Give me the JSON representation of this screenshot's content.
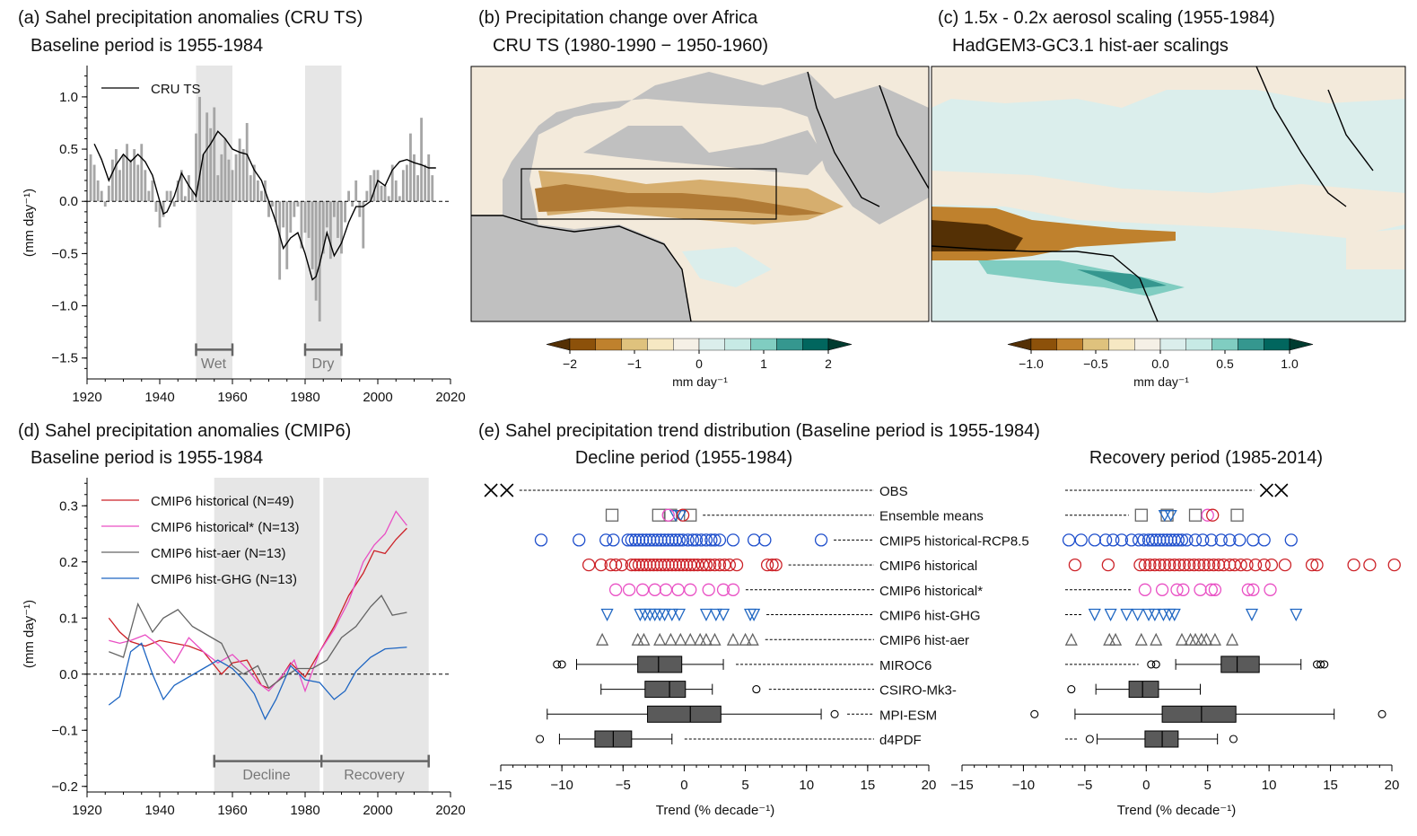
{
  "panels": {
    "a": {
      "title": "(a) Sahel precipitation anomalies (CRU TS)",
      "subtitle": "Baseline period is 1955-1984",
      "ylabel": "(mm day⁻¹)",
      "legend": "CRU TS",
      "wet_label": "Wet",
      "dry_label": "Dry"
    },
    "b": {
      "title": "(b) Precipitation change over Africa",
      "subtitle": "CRU TS (1980-1990 − 1950-1960)",
      "colorbar_ticks": [
        "−2",
        "−1",
        "0",
        "1",
        "2"
      ],
      "colorbar_label": "mm day⁻¹"
    },
    "c": {
      "title": "(c) 1.5x - 0.2x aerosol scaling (1955-1984)",
      "subtitle": "HadGEM3-GC3.1 hist-aer scalings",
      "colorbar_ticks": [
        "−1.0",
        "−0.5",
        "0.0",
        "0.5",
        "1.0"
      ],
      "colorbar_label": "mm day⁻¹"
    },
    "d": {
      "title": "(d) Sahel precipitation anomalies (CMIP6)",
      "subtitle": "Baseline period is 1955-1984",
      "ylabel": "(mm day⁻¹)",
      "decline_label": "Decline",
      "recovery_label": "Recovery"
    },
    "e": {
      "title": "(e) Sahel precipitation trend distribution (Baseline period is 1955-1984)",
      "decline_title": "Decline period (1955-1984)",
      "recovery_title": "Recovery period (1985-2014)",
      "xlabel": "Trend (% decade⁻¹)"
    }
  },
  "colors": {
    "cru": "#000000",
    "bars": "#a6a6a6",
    "shade": "#e6e6e6",
    "hist": "#cc2127",
    "hist_star": "#e94fc4",
    "hist_aer": "#646464",
    "hist_ghg": "#1f66c2",
    "cmip5": "#1f4fcc",
    "ens": "#666666",
    "box": "#5a5a5a"
  },
  "chart_data": [
    {
      "id": "a",
      "type": "bar",
      "xlabel": "",
      "ylabel": "(mm day⁻¹)",
      "xlim": [
        1920,
        2020
      ],
      "ylim": [
        -1.7,
        1.3
      ],
      "xticks": [
        1920,
        1940,
        1960,
        1980,
        2000,
        2020
      ],
      "yticks": [
        -1.5,
        -1.0,
        -0.5,
        0.0,
        0.5,
        1.0
      ],
      "ytick_labels": [
        "−1.5",
        "−1.0",
        "−0.5",
        "0.0",
        "0.5",
        "1.0"
      ],
      "shaded_periods": [
        [
          1950,
          1960
        ],
        [
          1980,
          1990
        ]
      ],
      "years_start": 1921,
      "annual_anomaly": [
        0.45,
        0.35,
        0.2,
        0.1,
        -0.05,
        0.15,
        0.4,
        0.5,
        0.3,
        0.45,
        0.55,
        0.4,
        0.5,
        0.35,
        0.55,
        0.3,
        0.1,
        0.2,
        -0.1,
        -0.25,
        -0.15,
        0.1,
        0.1,
        -0.05,
        0.2,
        0.3,
        0.05,
        0.25,
        0.1,
        0.65,
        1.0,
        0.45,
        0.85,
        0.7,
        0.9,
        0.25,
        0.45,
        0.6,
        0.4,
        0.3,
        0.45,
        0.6,
        0.5,
        0.75,
        0.25,
        0.35,
        0.2,
        0.1,
        0.2,
        -0.15,
        -0.05,
        -0.2,
        -0.75,
        -0.25,
        -0.65,
        -0.3,
        -0.15,
        -0.05,
        -0.45,
        -0.3,
        -0.35,
        -0.65,
        -0.95,
        -1.15,
        -0.5,
        -0.25,
        -0.55,
        -0.15,
        -0.35,
        -0.5,
        -0.2,
        0.1,
        -0.05,
        0.2,
        -0.15,
        -0.45,
        0.1,
        0.25,
        0.3,
        0.3,
        0.15,
        0.15,
        0.05,
        0.35,
        0.2,
        0.05,
        0.3,
        0.35,
        0.65,
        0.45,
        0.25,
        0.8,
        0.35,
        0.45,
        0.25
      ],
      "smoothed": {
        "x": [
          1922,
          1924,
          1926,
          1928,
          1930,
          1932,
          1934,
          1936,
          1938,
          1940,
          1941,
          1942,
          1944,
          1946,
          1948,
          1950,
          1952,
          1954,
          1956,
          1958,
          1960,
          1962,
          1964,
          1966,
          1968,
          1970,
          1972,
          1974,
          1976,
          1978,
          1980,
          1982,
          1983,
          1984,
          1986,
          1988,
          1990,
          1992,
          1994,
          1996,
          1998,
          2000,
          2002,
          2004,
          2006,
          2008,
          2010,
          2012,
          2014,
          2016
        ],
        "y": [
          0.55,
          0.4,
          0.2,
          0.35,
          0.45,
          0.38,
          0.45,
          0.38,
          0.25,
          0.0,
          -0.12,
          -0.1,
          0.05,
          0.27,
          0.15,
          0.05,
          0.45,
          0.55,
          0.67,
          0.6,
          0.5,
          0.47,
          0.45,
          0.3,
          0.2,
          0.0,
          -0.2,
          -0.45,
          -0.35,
          -0.3,
          -0.5,
          -0.75,
          -0.72,
          -0.6,
          -0.3,
          -0.52,
          -0.4,
          -0.2,
          -0.05,
          -0.05,
          0.0,
          0.2,
          0.15,
          0.3,
          0.38,
          0.4,
          0.37,
          0.35,
          0.32,
          0.32
        ]
      }
    },
    {
      "id": "b",
      "type": "heatmap",
      "colorbar": {
        "ticks": [
          -2,
          -1,
          0,
          1,
          2
        ],
        "levels": [
          -2.5,
          -2.0,
          -1.5,
          -1.0,
          -0.5,
          -0.25,
          0.25,
          0.5,
          1.0,
          1.5,
          2.0,
          2.5
        ],
        "colors": [
          "#543005",
          "#8c510a",
          "#bf812d",
          "#dfc27d",
          "#f6e8c3",
          "#f5f0e6",
          "#dbeeec",
          "#c7eae5",
          "#80cdc1",
          "#35978f",
          "#01665e",
          "#003c30"
        ]
      }
    },
    {
      "id": "c",
      "type": "heatmap",
      "colorbar": {
        "ticks": [
          -1.0,
          -0.5,
          0.0,
          0.5,
          1.0
        ],
        "levels": [
          -1.25,
          -1.0,
          -0.75,
          -0.5,
          -0.25,
          -0.125,
          0.125,
          0.25,
          0.5,
          0.75,
          1.0,
          1.25
        ]
      }
    },
    {
      "id": "d",
      "type": "line",
      "ylabel": "(mm day⁻¹)",
      "xlim": [
        1920,
        2020
      ],
      "ylim": [
        -0.21,
        0.35
      ],
      "xticks": [
        1920,
        1940,
        1960,
        1980,
        2000,
        2020
      ],
      "yticks": [
        -0.2,
        -0.1,
        0.0,
        0.1,
        0.2,
        0.3
      ],
      "ytick_labels": [
        "−0.2",
        "−0.1",
        "0.0",
        "0.1",
        "0.2",
        "0.3"
      ],
      "shaded_periods": [
        [
          1955,
          1984
        ],
        [
          1985,
          2014
        ]
      ],
      "series": [
        {
          "name": "CMIP6 historical (N=49)",
          "color": "#cc2127",
          "x": [
            1926,
            1929,
            1932,
            1936,
            1940,
            1944,
            1948,
            1952,
            1957,
            1960,
            1964,
            1968,
            1970,
            1973,
            1976,
            1980,
            1984,
            1988,
            1992,
            1996,
            1999,
            2002,
            2005,
            2008
          ],
          "y": [
            0.1,
            0.075,
            0.058,
            0.05,
            0.06,
            0.055,
            0.05,
            0.04,
            0.0,
            0.02,
            0.025,
            -0.02,
            -0.025,
            -0.01,
            0.02,
            -0.005,
            0.04,
            0.085,
            0.14,
            0.18,
            0.22,
            0.215,
            0.24,
            0.26
          ]
        },
        {
          "name": "CMIP6 historical* (N=13)",
          "color": "#e94fc4",
          "x": [
            1926,
            1929,
            1932,
            1936,
            1940,
            1944,
            1948,
            1952,
            1956,
            1960,
            1964,
            1967,
            1970,
            1974,
            1977,
            1980,
            1984,
            1988,
            1992,
            1996,
            1999,
            2002,
            2005,
            2008
          ],
          "y": [
            0.06,
            0.055,
            0.06,
            0.07,
            0.05,
            0.02,
            0.065,
            0.04,
            0.02,
            0.035,
            0.01,
            -0.015,
            -0.03,
            0.0,
            0.025,
            -0.03,
            0.04,
            0.08,
            0.13,
            0.2,
            0.23,
            0.25,
            0.29,
            0.265
          ]
        },
        {
          "name": "CMIP6 hist-aer (N=13)",
          "color": "#646464",
          "x": [
            1926,
            1930,
            1934,
            1938,
            1941,
            1945,
            1949,
            1953,
            1957,
            1960,
            1963,
            1967,
            1970,
            1974,
            1978,
            1982,
            1986,
            1990,
            1994,
            1998,
            2001,
            2004,
            2008
          ],
          "y": [
            0.04,
            0.03,
            0.125,
            0.075,
            0.1,
            0.115,
            0.085,
            0.07,
            0.055,
            0.015,
            0.0,
            0.015,
            -0.025,
            -0.005,
            0.01,
            0.01,
            0.025,
            0.065,
            0.085,
            0.12,
            0.14,
            0.105,
            0.11
          ]
        },
        {
          "name": "CMIP6 hist-GHG (N=13)",
          "color": "#1f66c2",
          "x": [
            1926,
            1929,
            1932,
            1935,
            1938,
            1941,
            1944,
            1948,
            1952,
            1956,
            1960,
            1963,
            1966,
            1969,
            1972,
            1976,
            1980,
            1984,
            1988,
            1991,
            1994,
            1998,
            2002,
            2008
          ],
          "y": [
            -0.055,
            -0.04,
            0.04,
            0.055,
            0.0,
            -0.045,
            -0.02,
            -0.005,
            0.01,
            0.025,
            0.01,
            -0.01,
            -0.035,
            -0.08,
            -0.045,
            0.015,
            -0.01,
            -0.015,
            -0.045,
            -0.03,
            0.005,
            0.03,
            0.045,
            0.048
          ]
        }
      ]
    },
    {
      "id": "e",
      "type": "scatter",
      "xlim": [
        -15,
        20
      ],
      "xticks": [
        -15,
        -10,
        -5,
        0,
        5,
        10,
        15,
        20
      ],
      "xtick_labels": [
        "−15",
        "−10",
        "−5",
        "0",
        "5",
        "10",
        "15",
        "20"
      ],
      "xlabel": "Trend (% decade⁻¹)",
      "rows": [
        "OBS",
        "Ensemble means",
        "CMIP5 historical-RCP8.5",
        "CMIP6 historical",
        "CMIP6 historical*",
        "CMIP6 hist-GHG",
        "CMIP6 hist-aer",
        "MIROC6",
        "CSIRO-Mk3-",
        "MPI-ESM",
        "d4PDF"
      ],
      "decline": {
        "OBS": {
          "marker": "x",
          "values": [
            -15.8,
            -14.5
          ]
        },
        "Ensemble means": {
          "squares": [
            -5.9,
            -2.1,
            -1.1,
            0.5
          ],
          "circles": [
            -1.3,
            -0.1
          ],
          "circle_colors": [
            "#e94fc4",
            "#cc2127"
          ],
          "triangles": [
            -0.7,
            -0.3
          ]
        },
        "CMIP5 historical-RCP8.5": [
          -11.7,
          -8.6,
          -6.4,
          -5.8,
          -4.6,
          -4.3,
          -4.0,
          -3.7,
          -3.4,
          -3.1,
          -2.8,
          -2.5,
          -2.2,
          -1.9,
          -1.6,
          -1.3,
          -1.0,
          -0.7,
          -0.4,
          -0.1,
          0.3,
          0.7,
          1.0,
          1.4,
          1.8,
          2.2,
          2.5,
          2.9,
          4.0,
          5.7,
          6.6,
          11.2
        ],
        "CMIP6 historical": [
          -7.8,
          -6.8,
          -6.0,
          -5.6,
          -5.1,
          -4.3,
          -4.0,
          -3.7,
          -3.4,
          -3.1,
          -2.8,
          -2.5,
          -2.2,
          -1.9,
          -1.6,
          -1.3,
          -1.0,
          -0.7,
          -0.4,
          -0.1,
          0.2,
          0.5,
          0.8,
          1.1,
          1.5,
          1.8,
          2.1,
          2.5,
          2.9,
          3.3,
          3.7,
          4.3,
          6.8,
          7.2,
          7.5
        ],
        "CMIP6 historical*": [
          -5.6,
          -4.5,
          -3.4,
          -2.4,
          -1.5,
          -0.5,
          0.5,
          2.0,
          3.2,
          4.0
        ],
        "CMIP6 hist-GHG": [
          -6.3,
          -3.6,
          -3.2,
          -2.8,
          -2.4,
          -2.0,
          -1.6,
          -1.0,
          -0.4,
          1.8,
          2.6,
          3.2,
          5.4,
          5.7
        ],
        "CMIP6 hist-aer": [
          -6.7,
          -3.8,
          -3.3,
          -2.0,
          -0.3,
          0.5,
          1.3,
          1.8,
          2.5,
          4.0,
          5.0,
          5.6,
          -1.1
        ],
        "boxes": {
          "MIROC6": {
            "whisker": [
              -8.8,
              3.2
            ],
            "box": [
              -3.8,
              -0.2
            ],
            "median": -2.1,
            "outliers": [
              -10.4,
              -10.0
            ]
          },
          "CSIRO-Mk3-": {
            "whisker": [
              -6.8,
              2.3
            ],
            "box": [
              -3.2,
              0.1
            ],
            "median": -1.2,
            "outliers": [
              5.9
            ]
          },
          "MPI-ESM": {
            "whisker": [
              -11.2,
              11.2
            ],
            "box": [
              -3.0,
              3.0
            ],
            "median": 0.5,
            "outliers": [
              12.3
            ]
          },
          "d4PDF": {
            "whisker": [
              -10.2,
              -1.0
            ],
            "box": [
              -7.3,
              -4.3
            ],
            "median": -5.8,
            "outliers": [
              -11.8
            ]
          }
        }
      },
      "recovery": {
        "OBS": {
          "marker": "x",
          "values": [
            9.8,
            11.0
          ]
        },
        "Ensemble means": {
          "squares": [
            -0.4,
            1.7,
            4.0,
            7.4
          ],
          "circles": [
            5.0,
            5.4
          ],
          "circle_colors": [
            "#e94fc4",
            "#cc2127"
          ],
          "triangles": [
            1.5,
            2.0
          ]
        },
        "CMIP5 historical-RCP8.5": [
          -6.3,
          -5.3,
          -4.2,
          -3.3,
          -2.7,
          -2.0,
          -1.2,
          -0.6,
          -0.2,
          0.2,
          0.5,
          0.8,
          1.1,
          1.4,
          1.7,
          2.0,
          2.3,
          2.6,
          2.9,
          3.3,
          4.0,
          4.6,
          5.3,
          6.1,
          6.8,
          7.6,
          8.7,
          9.6,
          11.8
        ],
        "CMIP6 historical": [
          -5.8,
          -3.1,
          -0.5,
          -0.1,
          0.3,
          0.7,
          1.1,
          1.5,
          1.9,
          2.3,
          2.7,
          3.1,
          3.5,
          3.9,
          4.3,
          4.7,
          5.1,
          5.5,
          5.9,
          6.3,
          6.8,
          7.2,
          7.7,
          8.2,
          8.9,
          9.6,
          10.2,
          11.3,
          13.5,
          13.9,
          16.9,
          18.2,
          20.2
        ],
        "CMIP6 historical*": [
          -0.1,
          1.3,
          2.5,
          3.0,
          4.4,
          5.3,
          5.6,
          8.3,
          8.7,
          10.1
        ],
        "CMIP6 hist-GHG": [
          -4.2,
          -2.9,
          -1.6,
          -0.7,
          0.2,
          0.7,
          1.4,
          1.9,
          2.3,
          8.6,
          12.2
        ],
        "CMIP6 hist-aer": [
          -6.1,
          -3.0,
          -2.5,
          -0.4,
          0.8,
          2.9,
          3.6,
          4.0,
          4.5,
          4.9,
          5.6,
          7.0
        ],
        "boxes": {
          "MIROC6": {
            "whisker": [
              2.4,
              12.6
            ],
            "box": [
              6.1,
              9.2
            ],
            "median": 7.4,
            "outliers": [
              0.4,
              0.8,
              13.9,
              14.2,
              14.5
            ]
          },
          "CSIRO-Mk3-": {
            "whisker": [
              -4.1,
              4.4
            ],
            "box": [
              -1.4,
              1.0
            ],
            "median": -0.3,
            "outliers": [
              -6.1
            ]
          },
          "MPI-ESM": {
            "whisker": [
              -5.8,
              15.3
            ],
            "box": [
              1.3,
              7.3
            ],
            "median": 4.5,
            "outliers": [
              -9.1,
              19.2
            ]
          },
          "d4PDF": {
            "whisker": [
              -4.0,
              5.8
            ],
            "box": [
              -0.1,
              2.6
            ],
            "median": 1.3,
            "outliers": [
              -4.6,
              7.1
            ]
          }
        }
      }
    }
  ]
}
